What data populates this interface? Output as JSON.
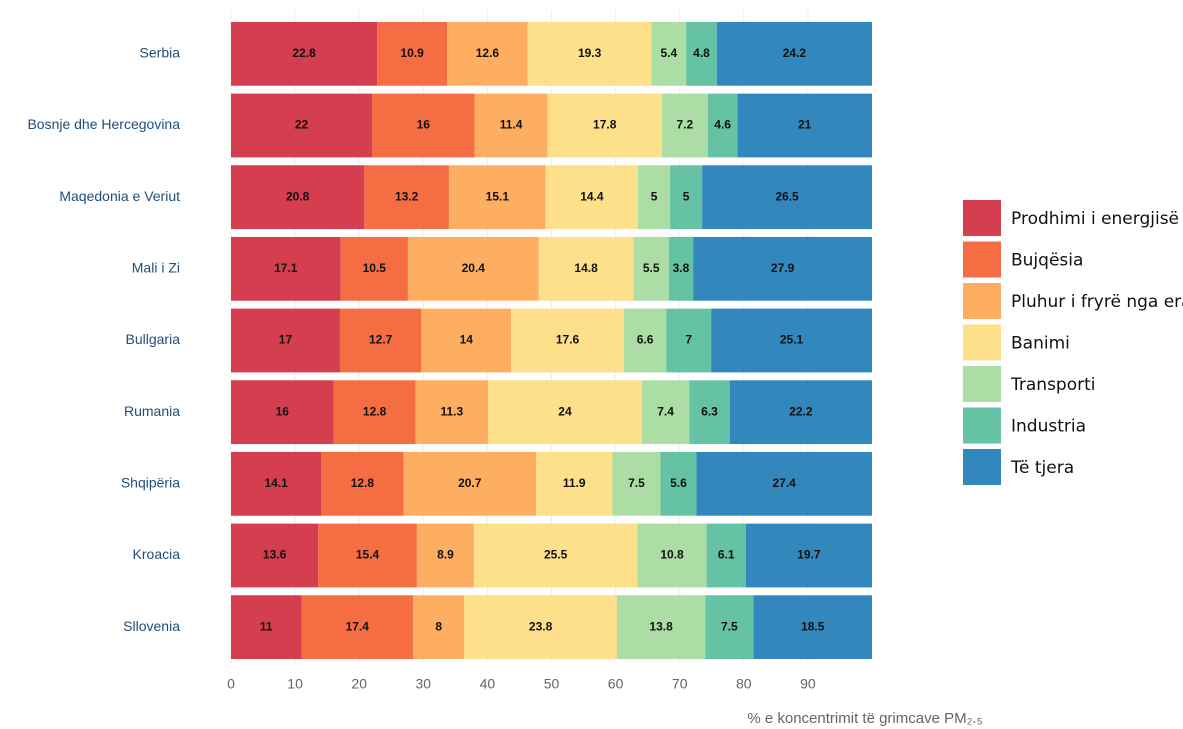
{
  "chart_data": {
    "type": "stacked_barh",
    "categories": [
      "Serbia",
      "Bosnje dhe Hercegovina",
      "Maqedonia e Veriut",
      "Mali i Zi",
      "Bullgaria",
      "Rumania",
      "Shqipëria",
      "Kroacia",
      "Sllovenia"
    ],
    "series": [
      {
        "name": "Prodhimi i energjisë",
        "color": "#d53e4f",
        "values": [
          22.8,
          22,
          20.8,
          17.1,
          17,
          16,
          14.1,
          13.6,
          11
        ]
      },
      {
        "name": "Bujqësia",
        "color": "#f46d43",
        "values": [
          10.9,
          16,
          13.2,
          10.5,
          12.7,
          12.8,
          12.8,
          15.4,
          17.4
        ]
      },
      {
        "name": "Pluhur i fryrë nga era",
        "color": "#fdae61",
        "values": [
          12.6,
          11.4,
          15.1,
          20.4,
          14,
          11.3,
          20.7,
          8.9,
          8
        ]
      },
      {
        "name": "Banimi",
        "color": "#fee08b",
        "values": [
          19.3,
          17.8,
          14.4,
          14.8,
          17.6,
          24,
          11.9,
          25.5,
          23.8
        ]
      },
      {
        "name": "Transporti",
        "color": "#abdda4",
        "values": [
          5.4,
          7.2,
          5,
          5.5,
          6.6,
          7.4,
          7.5,
          10.8,
          13.8
        ]
      },
      {
        "name": "Industria",
        "color": "#66c2a5",
        "values": [
          4.8,
          4.6,
          5,
          3.8,
          7,
          6.3,
          5.6,
          6.1,
          7.5
        ]
      },
      {
        "name": "Të tjera",
        "color": "#3288bd",
        "values": [
          24.2,
          21,
          26.5,
          27.9,
          25.1,
          22.2,
          27.4,
          19.7,
          18.5
        ]
      }
    ],
    "xlim": [
      0,
      100
    ],
    "xticks": [
      0,
      10,
      20,
      30,
      40,
      50,
      60,
      70,
      80,
      90
    ],
    "xlabel": "% e koncentrimit të grimcave PM₂.₅",
    "grid": true,
    "legend": "right"
  }
}
